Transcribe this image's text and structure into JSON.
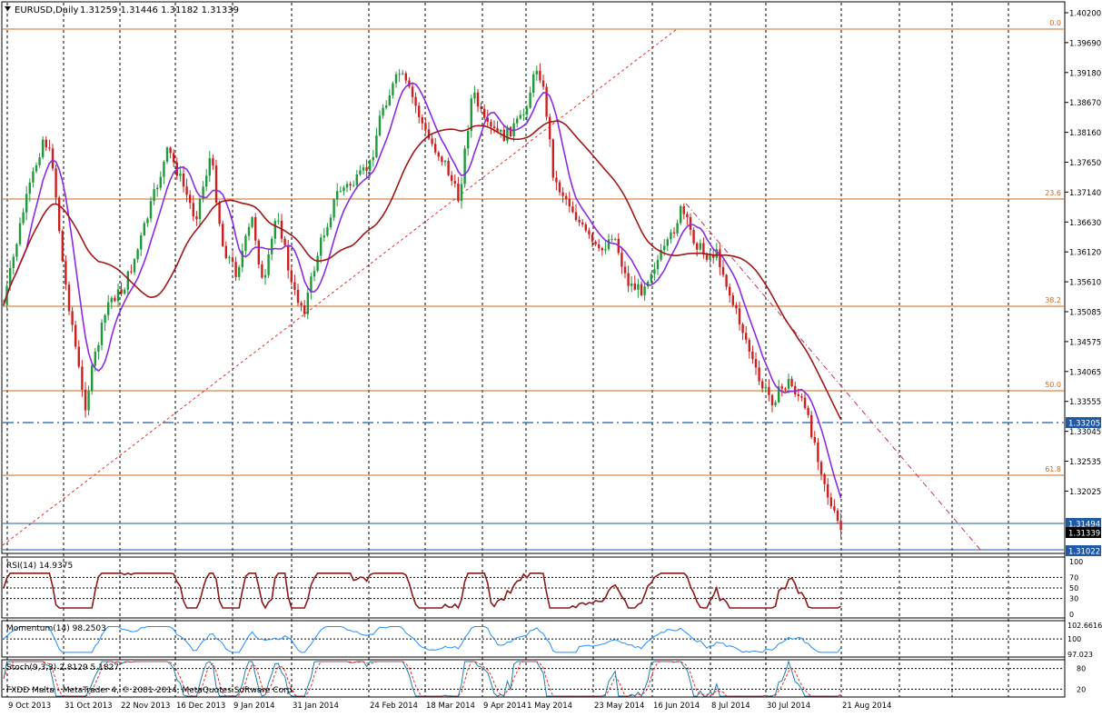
{
  "header": {
    "symbol_label": "EURUSD,Daily",
    "ohlc": "1.31259 1.31446 1.31182 1.31339"
  },
  "colors": {
    "bull_candle": "#1f9a3a",
    "bear_candle": "#cc1f1f",
    "ma_fast": "#8a2be2",
    "ma_slow": "#a01818",
    "fib_line": "#d2691e",
    "hline": "#1e5aa8",
    "trend_up": "#e03030",
    "trend_down": "#c0306a",
    "rsi_line": "#8b1a1a",
    "momentum_line": "#1e90ff",
    "stoch_main": "#1e7fa8",
    "stoch_signal": "#e03030",
    "grid": "#000000"
  },
  "price_axis": {
    "labels": [
      "1.40200",
      "1.39690",
      "1.39180",
      "1.38670",
      "1.38160",
      "1.37650",
      "1.37140",
      "1.36630",
      "1.36120",
      "1.35610",
      "1.35085",
      "1.34575",
      "1.34065",
      "1.33555",
      "1.33045",
      "1.32535",
      "1.32025"
    ]
  },
  "price_boxes": [
    {
      "label": "1.33205",
      "style": "blue"
    },
    {
      "label": "1.31494",
      "style": "blue"
    },
    {
      "label": "1.31339",
      "style": "black"
    },
    {
      "label": "1.31022",
      "style": "blue"
    }
  ],
  "fib_levels": [
    "0.0",
    "23.6",
    "38.2",
    "50.0",
    "61.8"
  ],
  "date_axis": [
    "9 Oct 2013",
    "31 Oct 2013",
    "22 Nov 2013",
    "16 Dec 2013",
    "9 Jan 2014",
    "31 Jan 2014",
    "24 Feb 2014",
    "18 Mar 2014",
    "9 Apr 2014",
    "1 May 2014",
    "23 May 2014",
    "16 Jun 2014",
    "8 Jul 2014",
    "30 Jul 2014",
    "21 Aug 2014"
  ],
  "rsi_panel": {
    "label": "RSI(14) 14.9375",
    "scale": [
      "100",
      "70",
      "50",
      "30",
      "0"
    ],
    "current": 14.94
  },
  "momentum_panel": {
    "label": "Momentum(14) 98.2503",
    "scale": [
      "102.6616",
      "100",
      "97.023"
    ],
    "current": 98.25
  },
  "stoch_panel": {
    "label": "Stoch(9,3,3) 2.8129 5.1827",
    "scale": [
      "80",
      "20"
    ],
    "main": 2.81,
    "signal": 5.18
  },
  "copyright": "FXDD Malta - MetaTrader 4, © 2001-2014, MetaQuotes Software Corp."
}
